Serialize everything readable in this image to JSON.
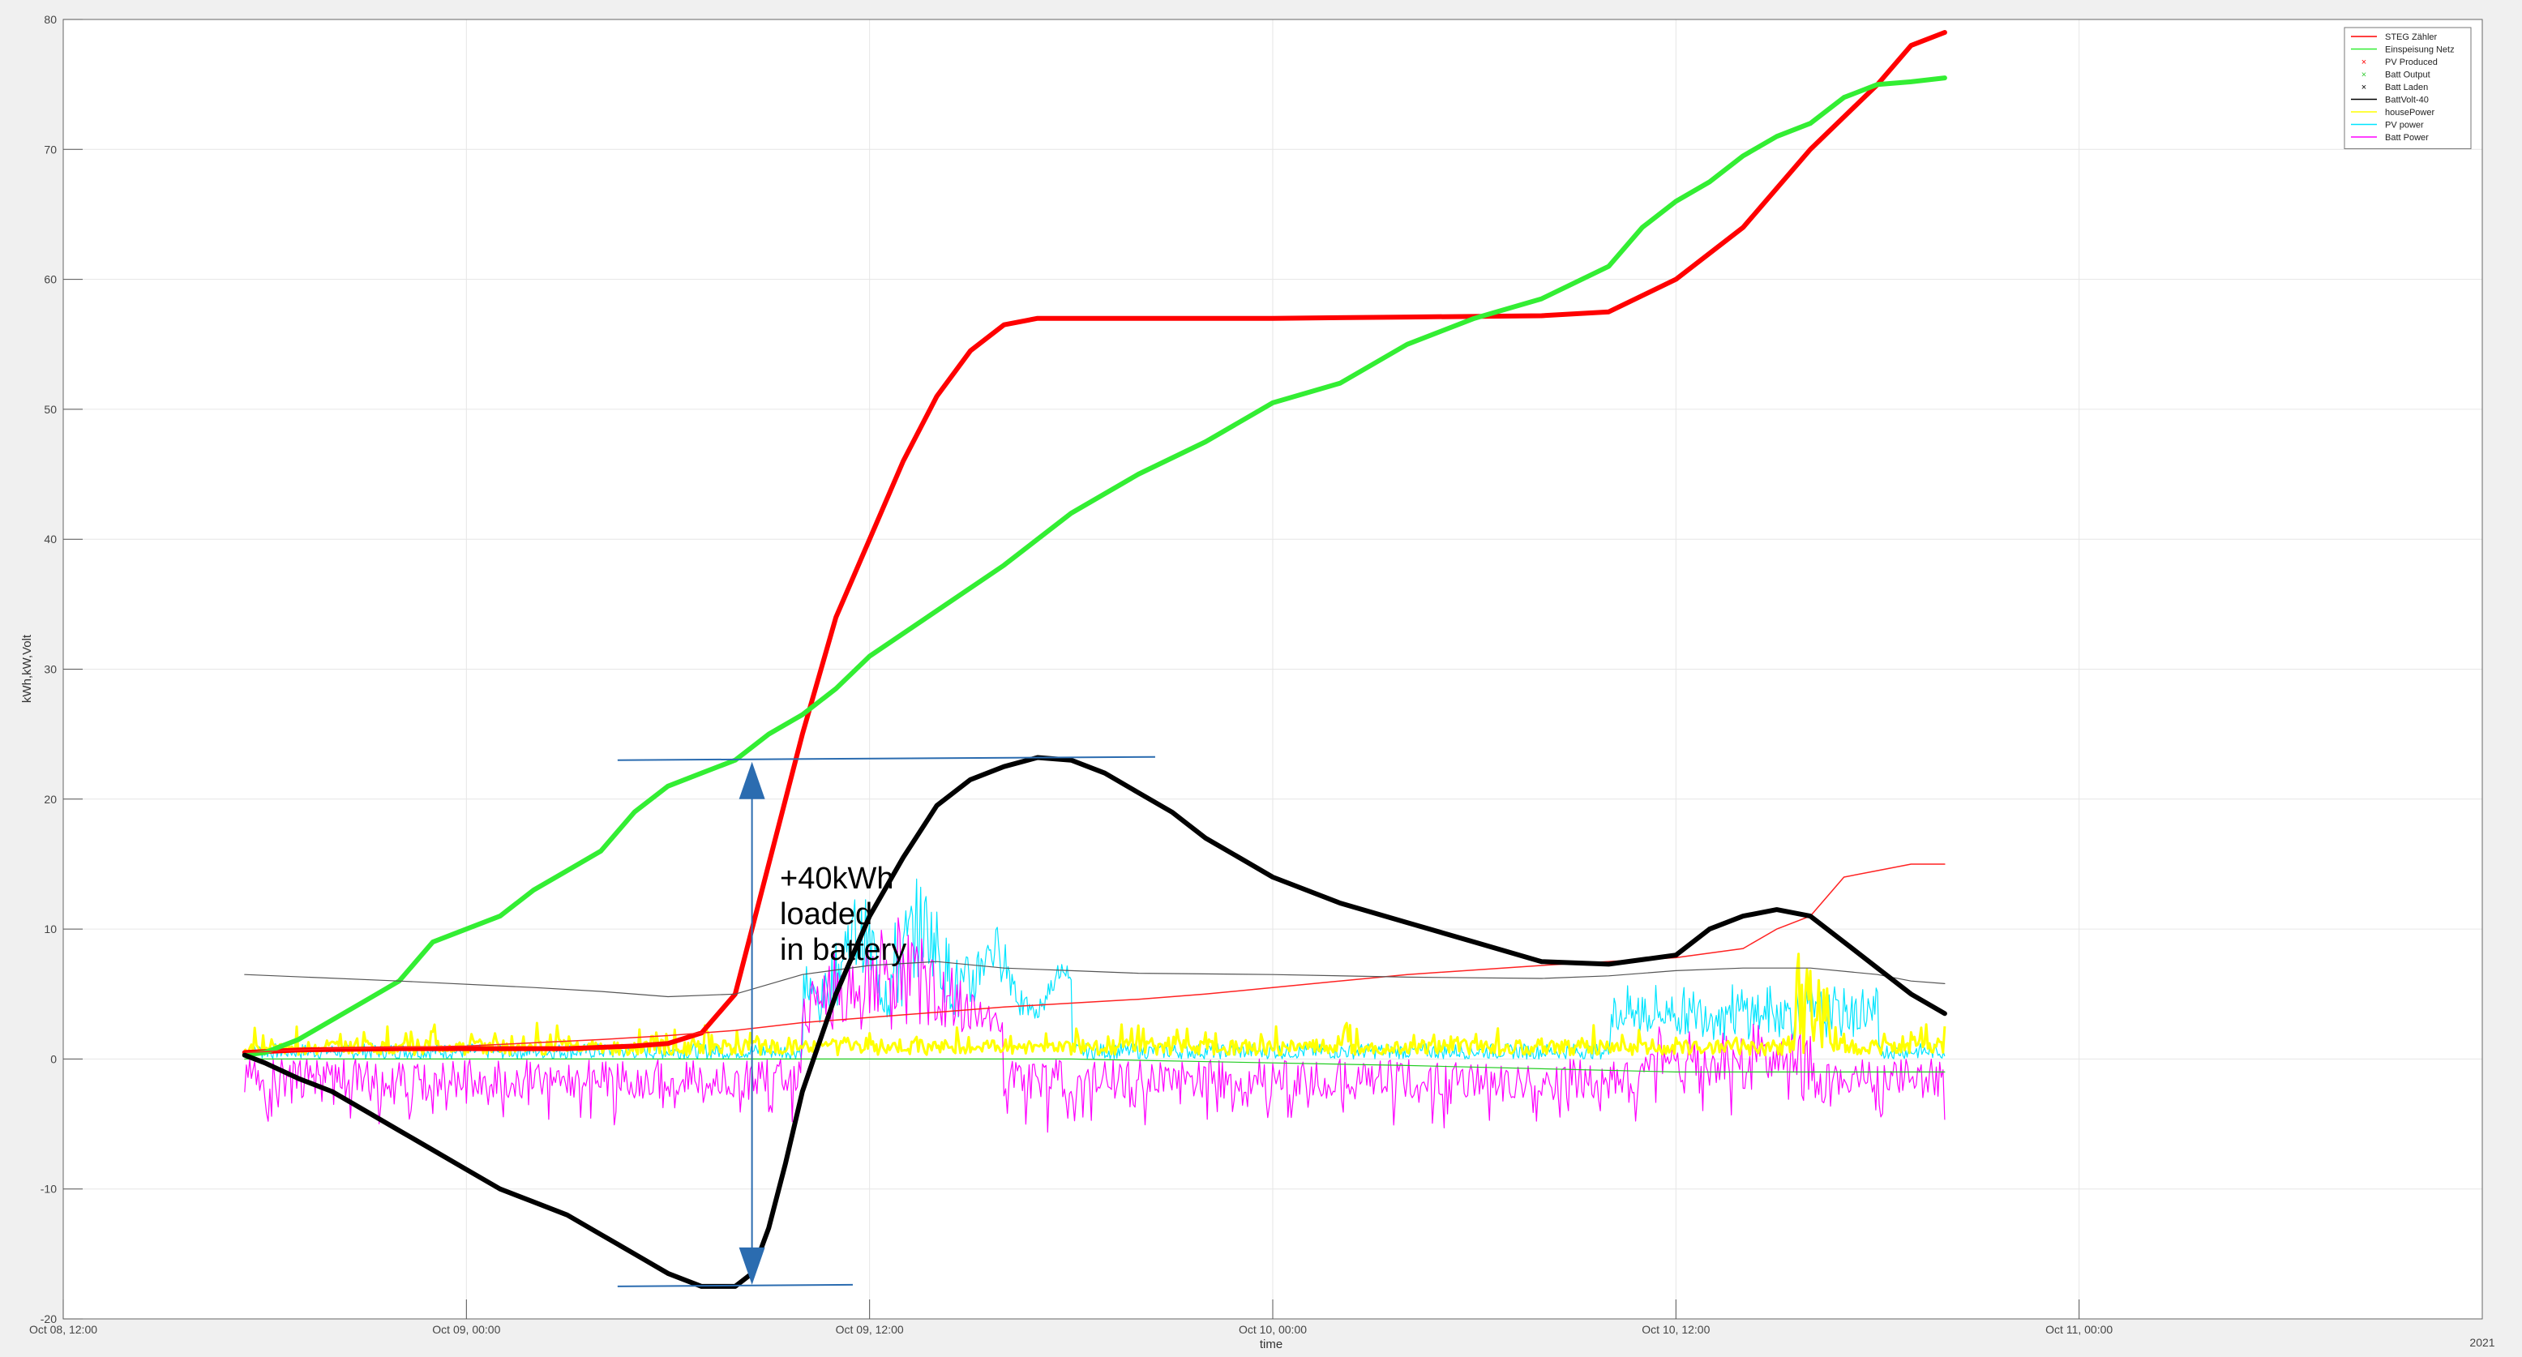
{
  "chart_data": {
    "type": "line",
    "title": "",
    "xlabel": "time",
    "ylabel": "kWh,kW,Volt",
    "ylim": [
      -20,
      80
    ],
    "xlim_hours": [
      0,
      72
    ],
    "x_unit": "hours since Oct 08, 12:00",
    "grid": true,
    "legend_position": "top-right",
    "x_ticks": [
      {
        "x": 0,
        "label": "Oct 08, 12:00"
      },
      {
        "x": 12,
        "label": "Oct 09, 00:00"
      },
      {
        "x": 24,
        "label": "Oct 09, 12:00"
      },
      {
        "x": 36,
        "label": "Oct 10, 00:00"
      },
      {
        "x": 48,
        "label": "Oct 10, 12:00"
      },
      {
        "x": 60,
        "label": "Oct 11, 00:00"
      }
    ],
    "x_year_label": "2021",
    "y_ticks": [
      -20,
      -10,
      0,
      10,
      20,
      30,
      40,
      50,
      60,
      70,
      80
    ],
    "series": [
      {
        "name": "STEG Zähler",
        "color": "#ff0000",
        "width": 6,
        "x": [
          5.4,
          7,
          10,
          12,
          14,
          15,
          16,
          17,
          18,
          19,
          20,
          21,
          22,
          23,
          24,
          25,
          26,
          27,
          28,
          29,
          30,
          31,
          32,
          34,
          36,
          40,
          44,
          46,
          48,
          50,
          52,
          54,
          55,
          56
        ],
        "y": [
          0.5,
          0.7,
          0.8,
          0.8,
          0.8,
          0.8,
          0.9,
          1.0,
          1.2,
          2.0,
          5.0,
          15.0,
          25.0,
          34.0,
          40.0,
          46.0,
          51.0,
          54.5,
          56.5,
          57.0,
          57.0,
          57.0,
          57.0,
          57.0,
          57.0,
          57.1,
          57.2,
          57.5,
          60.0,
          64.0,
          70.0,
          75.0,
          78.0,
          79.0
        ]
      },
      {
        "name": "Einspeisung Netz",
        "color": "#33ee33",
        "width": 6,
        "x": [
          5.4,
          6,
          7,
          8,
          9,
          10,
          11,
          12,
          13,
          14,
          15,
          16,
          17,
          18,
          19,
          20,
          21,
          22,
          23,
          24,
          26,
          28,
          30,
          32,
          34,
          36,
          38,
          40,
          42,
          44,
          46,
          47,
          48,
          49,
          50,
          51,
          52,
          53,
          54,
          55,
          56
        ],
        "y": [
          0.3,
          0.5,
          1.5,
          3.0,
          4.5,
          6.0,
          9.0,
          10.0,
          11.0,
          13.0,
          14.5,
          16.0,
          19.0,
          21.0,
          22.0,
          23.0,
          25.0,
          26.5,
          28.5,
          31.0,
          34.5,
          38.0,
          42.0,
          45.0,
          47.5,
          50.5,
          52.0,
          55.0,
          57.0,
          58.5,
          61.0,
          64.0,
          66.0,
          67.5,
          69.5,
          71.0,
          72.0,
          74.0,
          75.0,
          75.2,
          75.5
        ]
      },
      {
        "name": "PV Produced",
        "color": "#ff2222",
        "width": 1.5,
        "x": [
          5.4,
          8,
          12,
          16,
          18,
          20,
          22,
          24,
          26,
          28,
          30,
          32,
          34,
          36,
          40,
          44,
          48,
          50,
          51,
          52,
          53,
          54,
          55,
          56
        ],
        "y": [
          0.5,
          0.8,
          1.0,
          1.5,
          1.8,
          2.2,
          2.8,
          3.2,
          3.6,
          4.0,
          4.3,
          4.6,
          5.0,
          5.5,
          6.5,
          7.2,
          7.8,
          8.5,
          10.0,
          11.0,
          14.0,
          14.5,
          15.0,
          15.0
        ]
      },
      {
        "name": "Batt Output",
        "color": "#22cc22",
        "width": 1.2,
        "x": [
          5.4,
          20,
          30,
          40,
          48,
          56
        ],
        "y": [
          0.0,
          0.0,
          0.0,
          -0.5,
          -1.0,
          -1.0
        ]
      },
      {
        "name": "Batt Laden",
        "color": "#555555",
        "width": 1.2,
        "x": [
          5.4,
          10,
          14,
          16,
          18,
          20,
          22,
          24,
          26,
          28,
          30,
          32,
          36,
          40,
          44,
          46,
          48,
          50,
          52,
          54,
          55,
          56
        ],
        "y": [
          6.5,
          6.0,
          5.5,
          5.2,
          4.8,
          5.0,
          6.5,
          7.2,
          7.5,
          7.0,
          6.8,
          6.6,
          6.5,
          6.3,
          6.2,
          6.4,
          6.8,
          7.0,
          7.0,
          6.5,
          6.0,
          5.8
        ]
      },
      {
        "name": "BattVolt-40",
        "color": "#000000",
        "width": 6,
        "x": [
          5.4,
          6,
          7,
          8,
          9,
          10,
          11,
          12,
          13,
          14,
          15,
          16,
          17,
          18,
          19,
          20,
          20.5,
          21,
          21.5,
          22,
          23,
          24,
          25,
          26,
          27,
          28,
          29,
          30,
          31,
          32,
          33,
          34,
          35,
          36,
          38,
          40,
          42,
          44,
          46,
          48,
          49,
          50,
          51,
          52,
          53,
          54,
          55,
          56
        ],
        "y": [
          0.3,
          -0.3,
          -1.5,
          -2.5,
          -4.0,
          -5.5,
          -7.0,
          -8.5,
          -10.0,
          -11.0,
          -12.0,
          -13.5,
          -15.0,
          -16.5,
          -17.5,
          -17.5,
          -16.5,
          -13.0,
          -8.0,
          -2.5,
          5.0,
          11.0,
          15.5,
          19.5,
          21.5,
          22.5,
          23.2,
          23.0,
          22.0,
          20.5,
          19.0,
          17.0,
          15.5,
          14.0,
          12.0,
          10.5,
          9.0,
          7.5,
          7.3,
          8.0,
          10.0,
          11.0,
          11.5,
          11.0,
          9.0,
          7.0,
          5.0,
          3.5
        ]
      },
      {
        "name": "housePower",
        "color": "#ffff00",
        "width": 1.5
      },
      {
        "name": "PV power",
        "color": "#00e5ff",
        "width": 1.2
      },
      {
        "name": "Batt Power",
        "color": "#ff00ff",
        "width": 1.2
      }
    ],
    "legend": [
      {
        "label": "STEG Zähler",
        "color": "#ff0000",
        "kind": "line"
      },
      {
        "label": "Einspeisung Netz",
        "color": "#33ee33",
        "kind": "line"
      },
      {
        "label": "PV Produced",
        "color": "#ff0000",
        "kind": "marker"
      },
      {
        "label": "Batt Output",
        "color": "#33cc33",
        "kind": "marker"
      },
      {
        "label": "Batt Laden",
        "color": "#000000",
        "kind": "marker"
      },
      {
        "label": "BattVolt-40",
        "color": "#000000",
        "kind": "line"
      },
      {
        "label": "housePower",
        "color": "#ffff00",
        "kind": "line"
      },
      {
        "label": "PV power",
        "color": "#00e5ff",
        "kind": "line"
      },
      {
        "label": "Batt Power",
        "color": "#ff00ff",
        "kind": "line"
      }
    ],
    "annotation": {
      "lines": [
        "+40kWh",
        "loaded",
        "in battery"
      ],
      "color": "#2b6cb0",
      "upper_y": 23,
      "lower_y": -17.5
    }
  }
}
